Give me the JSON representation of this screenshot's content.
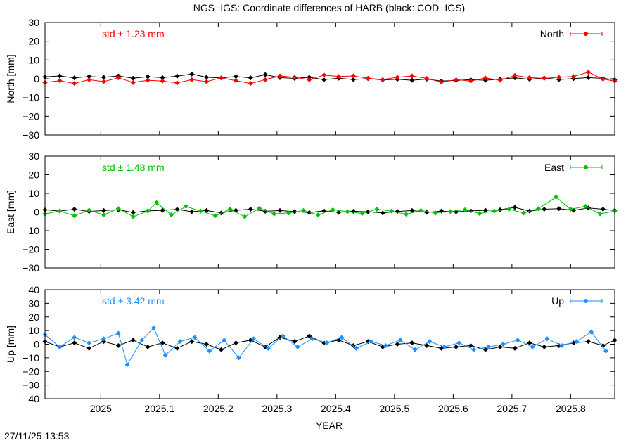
{
  "title": "NGS−IGS: Coordinate differences of HARB (black: COD−IGS)",
  "xlabel": "YEAR",
  "timestamp": "27/11/25 13:53",
  "chart_data": [
    {
      "type": "line",
      "ylabel": "North [mm]",
      "legend": "North",
      "legend_position": "top-right",
      "std_label": "std ± 1.23 mm",
      "color": "#ff0000",
      "reference_color": "#000000",
      "xlim": [
        2024.905,
        2025.875
      ],
      "ylim": [
        -30,
        30
      ],
      "yticks": [
        30,
        20,
        10,
        0,
        -10,
        -20,
        -30
      ],
      "xticks": [
        2025,
        2025.1,
        2025.2,
        2025.3,
        2025.4,
        2025.5,
        2025.6,
        2025.7,
        2025.8
      ],
      "grid": false,
      "series": [
        {
          "x": [
            2024.905,
            2024.93,
            2024.955,
            2024.98,
            2025.005,
            2025.03,
            2025.055,
            2025.08,
            2025.105,
            2025.13,
            2025.155,
            2025.18,
            2025.205,
            2025.23,
            2025.255,
            2025.28,
            2025.305,
            2025.33,
            2025.355,
            2025.38,
            2025.405,
            2025.43,
            2025.455,
            2025.48,
            2025.505,
            2025.53,
            2025.555,
            2025.58,
            2025.605,
            2025.63,
            2025.655,
            2025.68,
            2025.705,
            2025.73,
            2025.755,
            2025.78,
            2025.805,
            2025.83,
            2025.855,
            2025.875
          ],
          "y": [
            1,
            1.5,
            0.5,
            1.2,
            0.8,
            1.5,
            0.3,
            1.1,
            0.6,
            1.4,
            2.5,
            0.8,
            0.4,
            1.2,
            0.5,
            2.2,
            0.6,
            0.2,
            0.8,
            -0.5,
            0.3,
            -0.4,
            0.1,
            -0.6,
            -0.3,
            -0.8,
            -0.2,
            -1.2,
            -0.9,
            -0.5,
            -0.8,
            -0.2,
            0.5,
            -0.3,
            0.4,
            -0.4,
            0.1,
            0.6,
            0.2,
            -0.5
          ]
        },
        {
          "x": [
            2024.905,
            2024.93,
            2024.955,
            2024.98,
            2025.005,
            2025.03,
            2025.055,
            2025.08,
            2025.105,
            2025.13,
            2025.155,
            2025.18,
            2025.205,
            2025.23,
            2025.255,
            2025.28,
            2025.305,
            2025.33,
            2025.355,
            2025.38,
            2025.405,
            2025.43,
            2025.455,
            2025.48,
            2025.505,
            2025.53,
            2025.555,
            2025.58,
            2025.605,
            2025.63,
            2025.655,
            2025.68,
            2025.705,
            2025.73,
            2025.755,
            2025.78,
            2025.805,
            2025.83,
            2025.855,
            2025.875
          ],
          "y": [
            -2,
            -1,
            -2.5,
            -0.5,
            -1.5,
            0.5,
            -2,
            -0.8,
            -1.2,
            -2.2,
            -0.5,
            -1.5,
            0.5,
            -1,
            -2.5,
            -0.5,
            1.5,
            0.8,
            -0.5,
            2,
            1.2,
            1.5,
            0.3,
            -0.4,
            0.8,
            1.5,
            0.2,
            -1.8,
            -0.5,
            -1.2,
            0.4,
            -0.8,
            1.8,
            0.6,
            0.2,
            0.8,
            1.2,
            3.5,
            -0.2,
            -1.2
          ]
        }
      ]
    },
    {
      "type": "line",
      "ylabel": "East [mm]",
      "legend": "East",
      "legend_position": "top-right",
      "std_label": "std ± 1.48 mm",
      "color": "#00c000",
      "reference_color": "#000000",
      "xlim": [
        2024.905,
        2025.875
      ],
      "ylim": [
        -30,
        30
      ],
      "yticks": [
        30,
        20,
        10,
        0,
        -10,
        -20,
        -30
      ],
      "xticks": [
        2025,
        2025.1,
        2025.2,
        2025.3,
        2025.4,
        2025.5,
        2025.6,
        2025.7,
        2025.8
      ],
      "grid": false,
      "series": [
        {
          "x": [
            2024.905,
            2024.93,
            2024.955,
            2024.98,
            2025.005,
            2025.03,
            2025.055,
            2025.08,
            2025.105,
            2025.13,
            2025.155,
            2025.18,
            2025.205,
            2025.23,
            2025.255,
            2025.28,
            2025.305,
            2025.33,
            2025.355,
            2025.38,
            2025.405,
            2025.43,
            2025.455,
            2025.48,
            2025.505,
            2025.53,
            2025.555,
            2025.58,
            2025.605,
            2025.63,
            2025.655,
            2025.68,
            2025.705,
            2025.73,
            2025.755,
            2025.78,
            2025.805,
            2025.83,
            2025.855,
            2025.875
          ],
          "y": [
            1.2,
            0.5,
            1.5,
            0.3,
            0.8,
            1.2,
            -0.3,
            0.6,
            0.9,
            1.4,
            0.2,
            0.8,
            -0.5,
            0.9,
            1.5,
            0.4,
            0.8,
            0.2,
            -0.3,
            0.6,
            -0.2,
            0.4,
            0.1,
            -0.5,
            0.3,
            0.8,
            -0.2,
            0.5,
            0.1,
            0.6,
            0.9,
            1.2,
            2.5,
            0.5,
            1.5,
            1.8,
            0.9,
            2.2,
            1.5,
            0.8
          ]
        },
        {
          "x": [
            2024.905,
            2024.93,
            2024.955,
            2024.98,
            2025.005,
            2025.03,
            2025.055,
            2025.08,
            2025.095,
            2025.12,
            2025.145,
            2025.17,
            2025.195,
            2025.22,
            2025.245,
            2025.27,
            2025.295,
            2025.32,
            2025.345,
            2025.37,
            2025.395,
            2025.42,
            2025.445,
            2025.47,
            2025.495,
            2025.52,
            2025.545,
            2025.57,
            2025.595,
            2025.62,
            2025.645,
            2025.67,
            2025.695,
            2025.72,
            2025.745,
            2025.775,
            2025.8,
            2025.825,
            2025.85,
            2025.875
          ],
          "y": [
            -1,
            0.5,
            -2,
            1,
            -1.5,
            1.8,
            -2.5,
            0.5,
            5,
            -1.5,
            3,
            0.5,
            -2,
            1.5,
            -2.5,
            2,
            -1,
            -0.5,
            0.8,
            -1.5,
            1.2,
            0.2,
            -0.8,
            1.5,
            0.5,
            -1.2,
            0.8,
            -0.5,
            0.3,
            1.2,
            -0.8,
            0.5,
            1.5,
            -0.5,
            1.8,
            8,
            1.5,
            3,
            -1,
            0.5
          ]
        }
      ]
    },
    {
      "type": "line",
      "ylabel": "Up [mm]",
      "legend": "Up",
      "legend_position": "top-right",
      "std_label": "std ± 3.42 mm",
      "color": "#1e90ff",
      "reference_color": "#000000",
      "xlim": [
        2024.905,
        2025.875
      ],
      "ylim": [
        -40,
        40
      ],
      "yticks": [
        40,
        30,
        20,
        10,
        0,
        -10,
        -20,
        -30,
        -40
      ],
      "xticks": [
        2025,
        2025.1,
        2025.2,
        2025.3,
        2025.4,
        2025.5,
        2025.6,
        2025.7,
        2025.8
      ],
      "grid": false,
      "series": [
        {
          "x": [
            2024.905,
            2024.93,
            2024.955,
            2024.98,
            2025.005,
            2025.03,
            2025.055,
            2025.08,
            2025.105,
            2025.13,
            2025.155,
            2025.18,
            2025.205,
            2025.23,
            2025.255,
            2025.28,
            2025.305,
            2025.33,
            2025.355,
            2025.38,
            2025.405,
            2025.43,
            2025.455,
            2025.48,
            2025.505,
            2025.53,
            2025.555,
            2025.58,
            2025.605,
            2025.63,
            2025.655,
            2025.68,
            2025.705,
            2025.73,
            2025.755,
            2025.78,
            2025.805,
            2025.83,
            2025.855,
            2025.875
          ],
          "y": [
            2,
            -2,
            1,
            -3,
            2,
            -1,
            3,
            -2,
            1,
            -3,
            2,
            0,
            -4,
            1,
            3,
            -2,
            5,
            2,
            6,
            1,
            3,
            -1,
            2,
            -2,
            0,
            1,
            -1,
            -3,
            -2,
            -1,
            -4,
            -2,
            -3,
            1,
            -2,
            -1,
            1,
            2,
            -1,
            3
          ]
        },
        {
          "x": [
            2024.905,
            2024.93,
            2024.955,
            2024.98,
            2025.005,
            2025.03,
            2025.045,
            2025.07,
            2025.09,
            2025.11,
            2025.135,
            2025.16,
            2025.185,
            2025.21,
            2025.235,
            2025.26,
            2025.285,
            2025.31,
            2025.335,
            2025.36,
            2025.385,
            2025.41,
            2025.435,
            2025.46,
            2025.485,
            2025.51,
            2025.535,
            2025.56,
            2025.585,
            2025.61,
            2025.635,
            2025.66,
            2025.685,
            2025.71,
            2025.735,
            2025.76,
            2025.785,
            2025.81,
            2025.835,
            2025.86
          ],
          "y": [
            7,
            -2,
            5,
            1,
            4,
            8,
            -15,
            3,
            12,
            -8,
            2,
            5,
            -5,
            3,
            -10,
            4,
            -3,
            6,
            -2,
            4,
            1,
            5,
            -3,
            2,
            -1,
            3,
            -4,
            2,
            -2,
            1,
            -4,
            -2,
            0,
            3,
            -2,
            4,
            -1,
            2,
            9,
            -5
          ]
        }
      ]
    }
  ]
}
